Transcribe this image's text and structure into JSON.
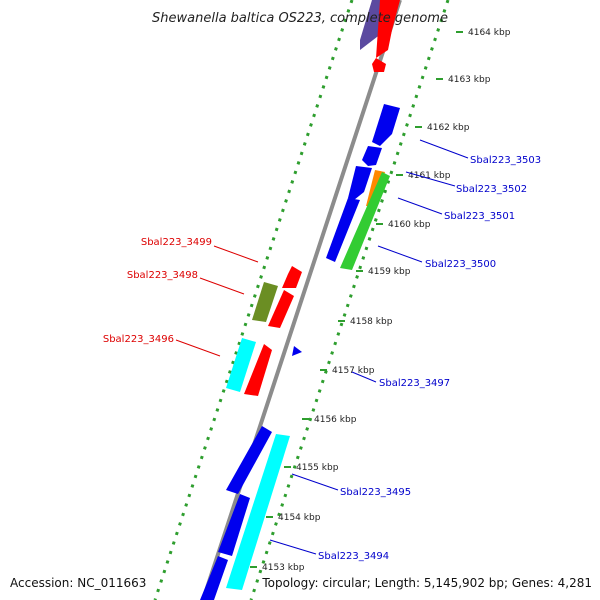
{
  "title": "Shewanella baltica OS223, complete genome",
  "footer": {
    "accession": "Accession: NC_011663",
    "summary": "Topology: circular; Length: 5,145,902 bp; Genes: 4,281"
  },
  "kbp_ticks": [
    "4164 kbp",
    "4163 kbp",
    "4162 kbp",
    "4161 kbp",
    "4160 kbp",
    "4159 kbp",
    "4158 kbp",
    "4157 kbp",
    "4156 kbp",
    "4155 kbp",
    "4154 kbp",
    "4153 kbp"
  ],
  "right_labels": [
    "Sbal223_3503",
    "Sbal223_3502",
    "Sbal223_3501",
    "Sbal223_3500",
    "Sbal223_3497",
    "Sbal223_3495",
    "Sbal223_3494"
  ],
  "left_labels": [
    "Sbal223_3499",
    "Sbal223_3498",
    "Sbal223_3496"
  ],
  "colors": {
    "forward_strand": "#0000ee",
    "reverse_strand": "#ff0000",
    "backbone": "#8c8c8c",
    "dots": "#2e9e2e",
    "cyan": "#00ffff",
    "green": "#33cc33",
    "orange": "#ff8800",
    "olive": "#6b8e23",
    "purple": "#5b4aa0",
    "right_label": "#0000cc",
    "left_label": "#dd0000"
  }
}
